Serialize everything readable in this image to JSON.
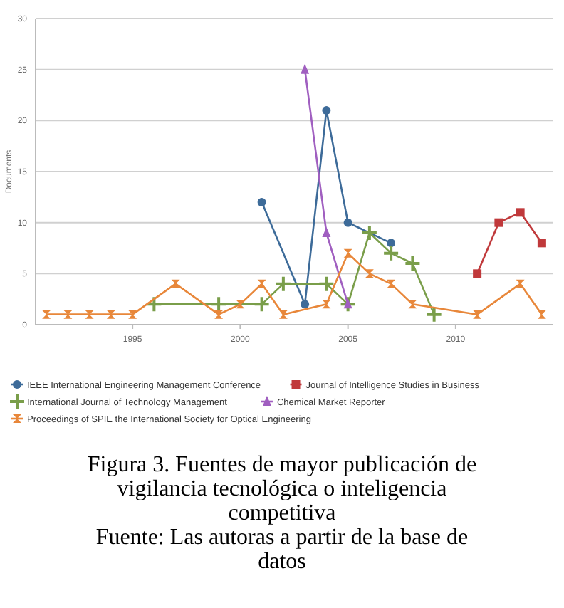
{
  "chart_data": {
    "type": "line",
    "ylabel": "Documents",
    "xlim": [
      1990.5,
      2014.5
    ],
    "xticks": [
      1995,
      2000,
      2005,
      2010
    ],
    "ylim": [
      0,
      30
    ],
    "yticks": [
      0,
      5,
      10,
      15,
      20,
      25,
      30
    ],
    "grid": "y",
    "legend": "bottom",
    "series": [
      {
        "name": "IEEE International Engineering Management Conference",
        "color": "#3d6b99",
        "marker": "circle",
        "x": [
          2001,
          2003,
          2004,
          2005,
          2007
        ],
        "values": [
          12,
          2,
          21,
          10,
          8
        ]
      },
      {
        "name": "Journal of Intelligence Studies in Business",
        "color": "#c0393b",
        "marker": "square",
        "x": [
          2011,
          2012,
          2013,
          2014
        ],
        "values": [
          5,
          10,
          11,
          8
        ]
      },
      {
        "name": "International Journal of Technology Management",
        "color": "#7a9e4a",
        "marker": "cross",
        "x": [
          1996,
          1999,
          2001,
          2002,
          2004,
          2005,
          2006,
          2007,
          2008,
          2009
        ],
        "values": [
          2,
          2,
          2,
          4,
          4,
          2,
          9,
          7,
          6,
          1
        ]
      },
      {
        "name": "Chemical Market Reporter",
        "color": "#a05fc0",
        "marker": "triangle",
        "x": [
          2003,
          2004,
          2005
        ],
        "values": [
          25,
          9,
          2
        ]
      },
      {
        "name": "Proceedings of SPIE the International Society for Optical Engineering",
        "color": "#e8873a",
        "marker": "diamond",
        "x": [
          1991,
          1992,
          1993,
          1994,
          1995,
          1997,
          1999,
          2000,
          2001,
          2002,
          2004,
          2005,
          2006,
          2007,
          2008,
          2011,
          2013,
          2014
        ],
        "values": [
          1,
          1,
          1,
          1,
          1,
          4,
          1,
          2,
          4,
          1,
          2,
          7,
          5,
          4,
          2,
          1,
          4,
          1
        ]
      }
    ],
    "annotations": [
      "Figura 3. Fuentes de mayor publicación de vigilancia tecnológica o inteligencia competitiva",
      "Fuente: Las autoras a partir de la base de datos"
    ]
  }
}
